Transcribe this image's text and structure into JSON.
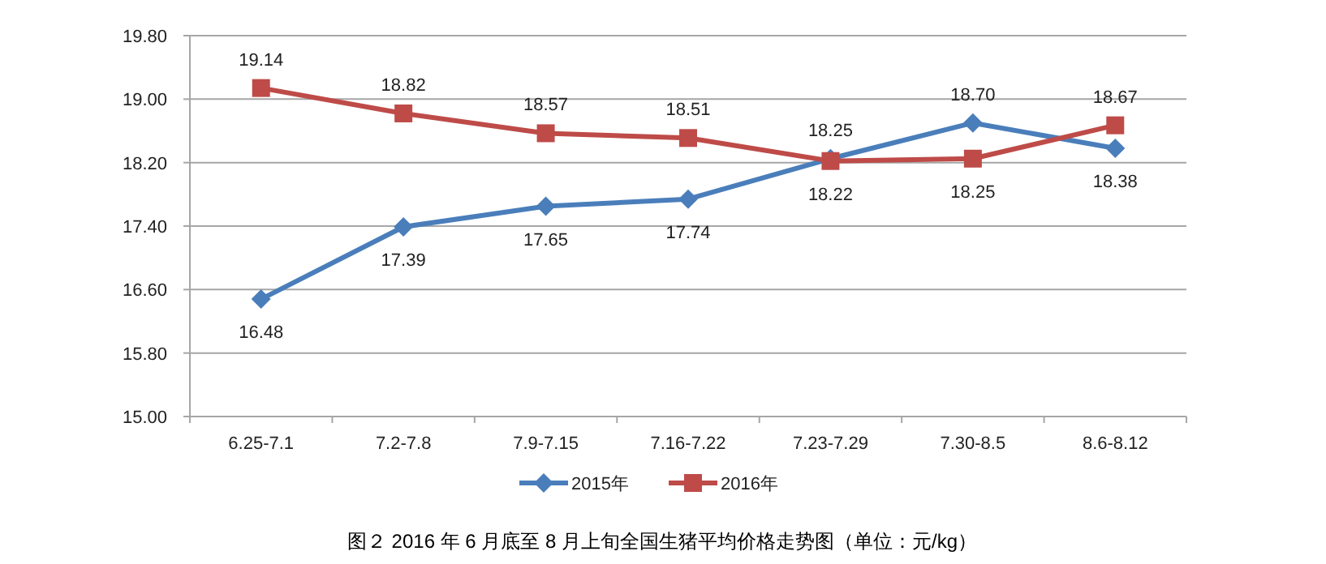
{
  "chart_data": {
    "type": "line",
    "categories": [
      "6.25-7.1",
      "7.2-7.8",
      "7.9-7.15",
      "7.16-7.22",
      "7.23-7.29",
      "7.30-8.5",
      "8.6-8.12"
    ],
    "series": [
      {
        "name": "2015年",
        "color": "#4a7ebb",
        "marker": "diamond",
        "values": [
          16.48,
          17.39,
          17.65,
          17.74,
          18.25,
          18.7,
          18.38
        ],
        "value_labels": [
          "16.48",
          "17.39",
          "17.65",
          "17.74",
          "18.25",
          "18.70",
          "18.38"
        ]
      },
      {
        "name": "2016年",
        "color": "#be4b48",
        "marker": "square",
        "values": [
          19.14,
          18.82,
          18.57,
          18.51,
          18.22,
          18.25,
          18.67
        ],
        "value_labels": [
          "19.14",
          "18.82",
          "18.57",
          "18.51",
          "18.22",
          "18.25",
          "18.67"
        ]
      }
    ],
    "ylim": [
      15.0,
      19.8
    ],
    "yticks": [
      {
        "value": 15.0,
        "label": "15.00"
      },
      {
        "value": 15.8,
        "label": "15.80"
      },
      {
        "value": 16.6,
        "label": "16.60"
      },
      {
        "value": 17.4,
        "label": "17.40"
      },
      {
        "value": 18.2,
        "label": "18.20"
      },
      {
        "value": 19.0,
        "label": "19.00"
      },
      {
        "value": 19.8,
        "label": "19.80"
      }
    ],
    "grid": "y",
    "legend": "bottom",
    "annotations": [
      "图２  2016 年 6 月底至 8 月上旬全国生猪平均价格走势图（单位：元/kg）"
    ]
  }
}
